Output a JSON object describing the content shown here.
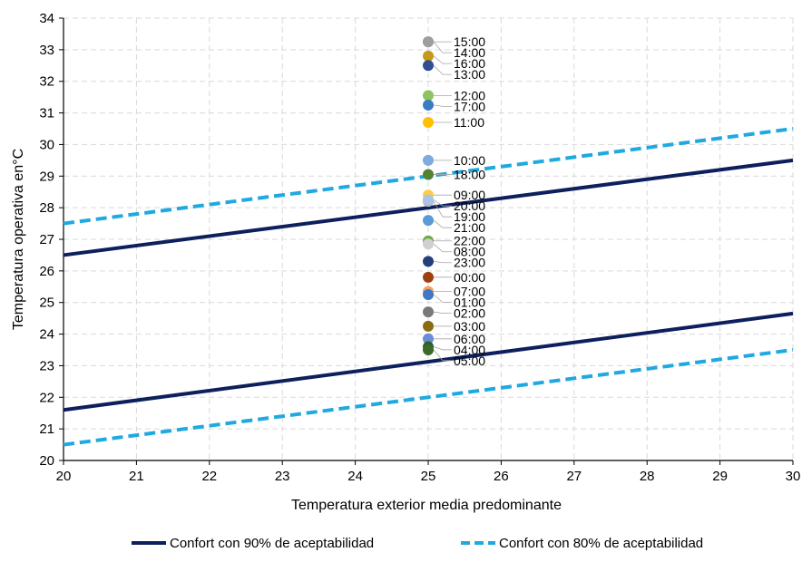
{
  "chart_data": {
    "type": "scatter",
    "xlabel": "Temperatura exterior media predominante",
    "ylabel": "Temperatura operativa en°C",
    "xlim": [
      20,
      30
    ],
    "ylim": [
      20,
      34
    ],
    "x_ticks": [
      20,
      21,
      22,
      23,
      24,
      25,
      26,
      27,
      28,
      29,
      30
    ],
    "y_ticks": [
      20,
      21,
      22,
      23,
      24,
      25,
      26,
      27,
      28,
      29,
      30,
      31,
      32,
      33,
      34
    ],
    "grid": "dashed",
    "legend_position": "bottom",
    "lines": [
      {
        "name": "Confort con 90% de aceptabilidad",
        "color": "#0d1f5c",
        "style": "solid",
        "x": [
          20,
          30
        ],
        "y": [
          26.5,
          29.5
        ]
      },
      {
        "name": "Confort con 90% de aceptabilidad",
        "color": "#0d1f5c",
        "style": "solid",
        "x": [
          20,
          30
        ],
        "y": [
          21.6,
          24.65
        ],
        "in_legend": false
      },
      {
        "name": "Confort con 80% de aceptabilidad",
        "color": "#1fa9e1",
        "style": "dashed",
        "x": [
          20,
          30
        ],
        "y": [
          27.5,
          30.5
        ]
      },
      {
        "name": "Confort con 80% de aceptabilidad",
        "color": "#1fa9e1",
        "style": "dashed",
        "x": [
          20,
          30
        ],
        "y": [
          20.5,
          23.5
        ],
        "in_legend": false
      }
    ],
    "points": [
      {
        "label": "15:00",
        "x": 25,
        "y": 33.25,
        "color": "#a5a5a5"
      },
      {
        "label": "14:00",
        "x": 25,
        "y": 33.25,
        "color": "#9e9e9e"
      },
      {
        "label": "16:00",
        "x": 25,
        "y": 32.8,
        "color": "#c39a1a"
      },
      {
        "label": "13:00",
        "x": 25,
        "y": 32.5,
        "color": "#2f4f91"
      },
      {
        "label": "12:00",
        "x": 25,
        "y": 31.55,
        "color": "#8fc35f"
      },
      {
        "label": "17:00",
        "x": 25,
        "y": 31.25,
        "color": "#3a7cc2"
      },
      {
        "label": "11:00",
        "x": 25,
        "y": 30.7,
        "color": "#ffc000"
      },
      {
        "label": "10:00",
        "x": 25,
        "y": 29.5,
        "color": "#7eaadf"
      },
      {
        "label": "18:00",
        "x": 25,
        "y": 29.05,
        "color": "#548235"
      },
      {
        "label": "09:00",
        "x": 25,
        "y": 28.4,
        "color": "#ffcc44"
      },
      {
        "label": "19:00",
        "x": 25,
        "y": 28.2,
        "color": "#b4b4b4"
      },
      {
        "label": "20:00",
        "x": 25,
        "y": 28.25,
        "color": "#a9c4e8"
      },
      {
        "label": "21:00",
        "x": 25,
        "y": 27.6,
        "color": "#5b9bd5"
      },
      {
        "label": "22:00",
        "x": 25,
        "y": 26.95,
        "color": "#70ad47"
      },
      {
        "label": "08:00",
        "x": 25,
        "y": 26.85,
        "color": "#d0d0d0"
      },
      {
        "label": "23:00",
        "x": 25,
        "y": 26.3,
        "color": "#243f7a"
      },
      {
        "label": "00:00",
        "x": 25,
        "y": 25.8,
        "color": "#9e3f10"
      },
      {
        "label": "07:00",
        "x": 25,
        "y": 25.35,
        "color": "#f4a261"
      },
      {
        "label": "01:00",
        "x": 25,
        "y": 25.25,
        "color": "#3e78c6"
      },
      {
        "label": "02:00",
        "x": 25,
        "y": 24.7,
        "color": "#7a7a7a"
      },
      {
        "label": "03:00",
        "x": 25,
        "y": 24.25,
        "color": "#8a6d10"
      },
      {
        "label": "06:00",
        "x": 25,
        "y": 23.85,
        "color": "#6b8dd6"
      },
      {
        "label": "04:00",
        "x": 25,
        "y": 23.6,
        "color": "#2f5f2a"
      },
      {
        "label": "05:00",
        "x": 25,
        "y": 23.5,
        "color": "#3a6b2a"
      }
    ]
  }
}
